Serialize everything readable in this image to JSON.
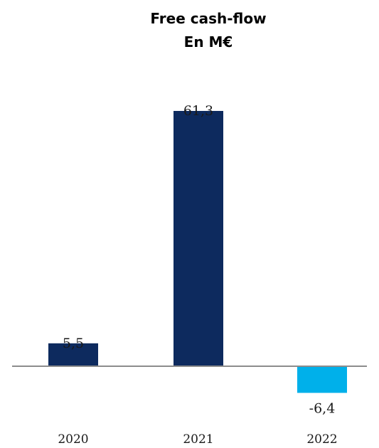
{
  "chart_data": {
    "type": "bar",
    "title_lines": [
      "Free cash-flow",
      "En M€"
    ],
    "categories": [
      "2020",
      "2021",
      "2022"
    ],
    "values": [
      5.5,
      61.3,
      -6.4
    ],
    "value_labels": [
      "5,5",
      "61,3",
      "-6,4"
    ],
    "bar_colors": [
      "#0d2a5e",
      "#0d2a5e",
      "#00b0ea"
    ],
    "baseline_color": "#8c8c8c",
    "ylim": [
      -6.4,
      61.3
    ],
    "grid": false,
    "legend": "none"
  }
}
